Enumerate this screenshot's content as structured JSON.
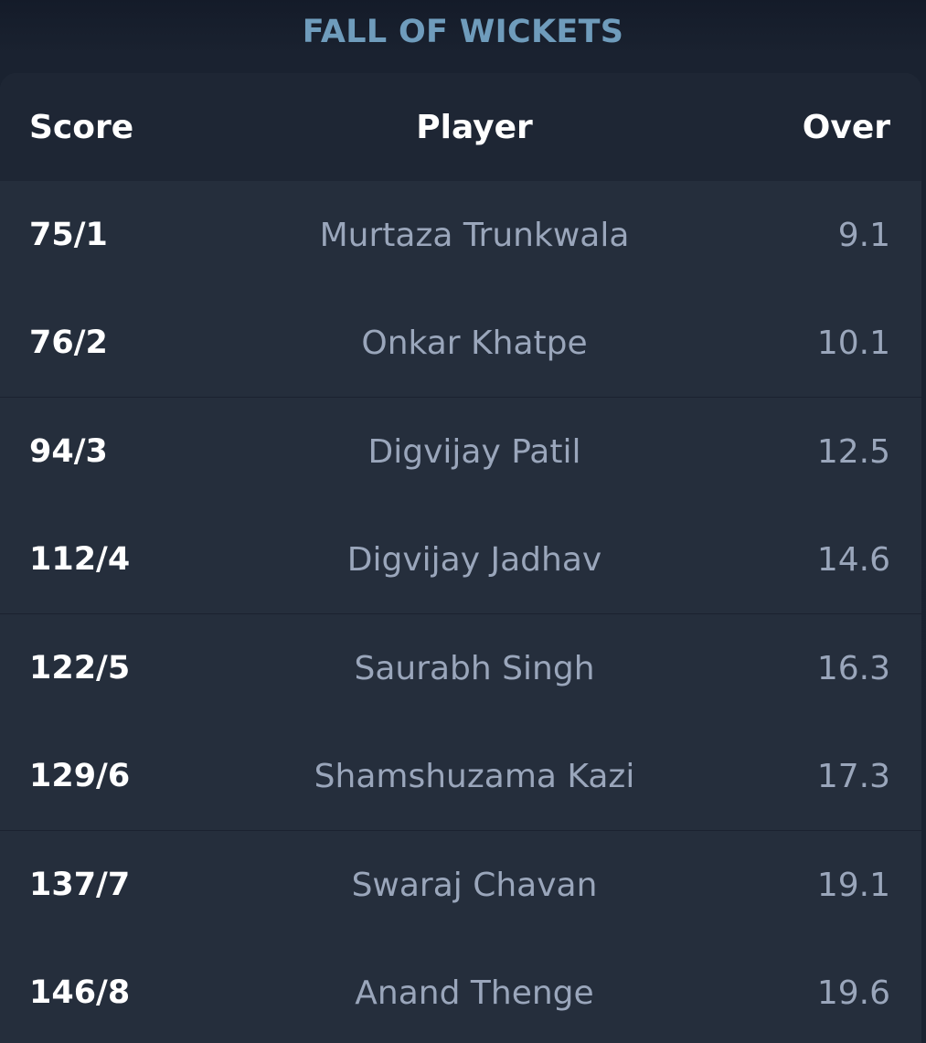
{
  "section": {
    "title": "FALL OF WICKETS"
  },
  "table": {
    "headers": {
      "score": "Score",
      "player": "Player",
      "over": "Over"
    },
    "rows": [
      {
        "score": "75/1",
        "player": "Murtaza Trunkwala",
        "over": "9.1"
      },
      {
        "score": "76/2",
        "player": "Onkar Khatpe",
        "over": "10.1"
      },
      {
        "score": "94/3",
        "player": "Digvijay Patil",
        "over": "12.5"
      },
      {
        "score": "112/4",
        "player": "Digvijay Jadhav",
        "over": "14.6"
      },
      {
        "score": "122/5",
        "player": "Saurabh Singh",
        "over": "16.3"
      },
      {
        "score": "129/6",
        "player": "Shamshuzama Kazi",
        "over": "17.3"
      },
      {
        "score": "137/7",
        "player": "Swaraj Chavan",
        "over": "19.1"
      },
      {
        "score": "146/8",
        "player": "Anand Thenge",
        "over": "19.6"
      }
    ]
  },
  "colors": {
    "title": "#6f9cbc",
    "panel": "#252e3c",
    "header": "#1e2634",
    "score_text": "#ffffff",
    "muted_text": "#9aa6bb"
  }
}
